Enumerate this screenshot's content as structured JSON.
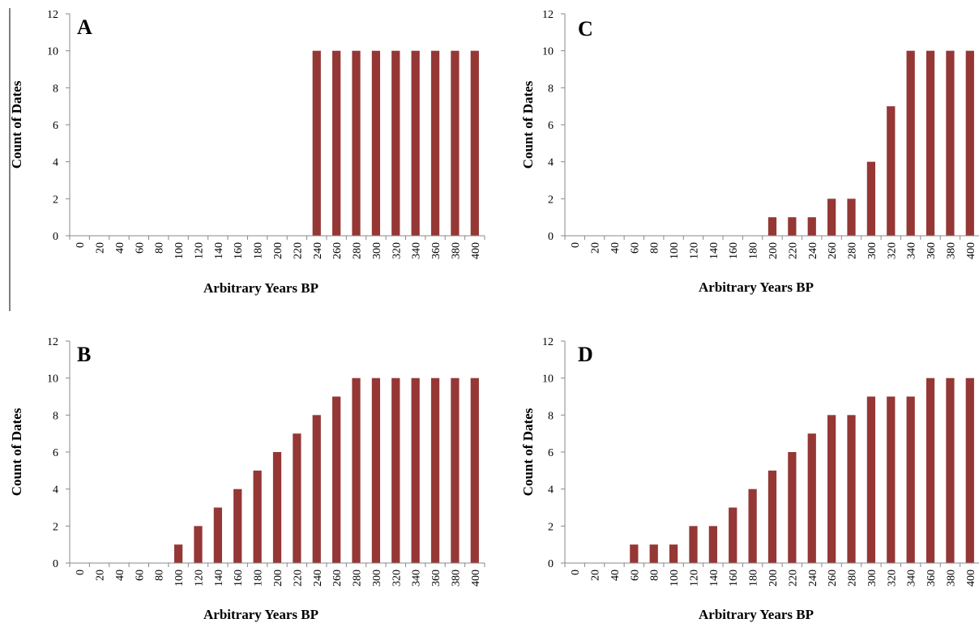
{
  "chart_data": [
    {
      "type": "bar",
      "panel_label": "A",
      "categories": [
        "0",
        "20",
        "40",
        "60",
        "80",
        "100",
        "120",
        "140",
        "160",
        "180",
        "200",
        "220",
        "240",
        "260",
        "280",
        "300",
        "320",
        "340",
        "360",
        "380",
        "400"
      ],
      "values": [
        0,
        0,
        0,
        0,
        0,
        0,
        0,
        0,
        0,
        0,
        0,
        0,
        10,
        10,
        10,
        10,
        10,
        10,
        10,
        10,
        10
      ],
      "xlabel": "Arbitrary Years BP",
      "ylabel": "Count of Dates",
      "ylim": [
        0,
        12
      ],
      "yticks": [
        "0",
        "2",
        "4",
        "6",
        "8",
        "10",
        "12"
      ],
      "bar_color": "#953735",
      "grid": false
    },
    {
      "type": "bar",
      "panel_label": "C",
      "categories": [
        "0",
        "20",
        "40",
        "60",
        "80",
        "100",
        "120",
        "140",
        "160",
        "180",
        "200",
        "220",
        "240",
        "260",
        "280",
        "300",
        "320",
        "340",
        "360",
        "380",
        "400"
      ],
      "values": [
        0,
        0,
        0,
        0,
        0,
        0,
        0,
        0,
        0,
        0,
        1,
        1,
        1,
        2,
        2,
        4,
        7,
        10,
        10,
        10,
        10
      ],
      "xlabel": "Arbitrary Years BP",
      "ylabel": "Count of Dates",
      "ylim": [
        0,
        12
      ],
      "yticks": [
        "0",
        "2",
        "4",
        "6",
        "8",
        "10",
        "12"
      ],
      "bar_color": "#953735",
      "grid": false
    },
    {
      "type": "bar",
      "panel_label": "B",
      "categories": [
        "0",
        "20",
        "40",
        "60",
        "80",
        "100",
        "120",
        "140",
        "160",
        "180",
        "200",
        "220",
        "240",
        "260",
        "280",
        "300",
        "320",
        "340",
        "360",
        "380",
        "400"
      ],
      "values": [
        0,
        0,
        0,
        0,
        0,
        1,
        2,
        3,
        4,
        5,
        6,
        7,
        8,
        9,
        10,
        10,
        10,
        10,
        10,
        10,
        10
      ],
      "xlabel": "Arbitrary Years BP",
      "ylabel": "Count of Dates",
      "ylim": [
        0,
        12
      ],
      "yticks": [
        "0",
        "2",
        "4",
        "6",
        "8",
        "10",
        "12"
      ],
      "bar_color": "#953735",
      "grid": false
    },
    {
      "type": "bar",
      "panel_label": "D",
      "categories": [
        "0",
        "20",
        "40",
        "60",
        "80",
        "100",
        "120",
        "140",
        "160",
        "180",
        "200",
        "220",
        "240",
        "260",
        "280",
        "300",
        "320",
        "340",
        "360",
        "380",
        "400"
      ],
      "values": [
        0,
        0,
        0,
        1,
        1,
        1,
        2,
        2,
        3,
        4,
        5,
        6,
        7,
        8,
        8,
        9,
        9,
        9,
        10,
        10,
        10
      ],
      "xlabel": "Arbitrary Years BP",
      "ylabel": "Count of Dates",
      "ylim": [
        0,
        12
      ],
      "yticks": [
        "0",
        "2",
        "4",
        "6",
        "8",
        "10",
        "12"
      ],
      "bar_color": "#953735",
      "grid": false
    }
  ]
}
